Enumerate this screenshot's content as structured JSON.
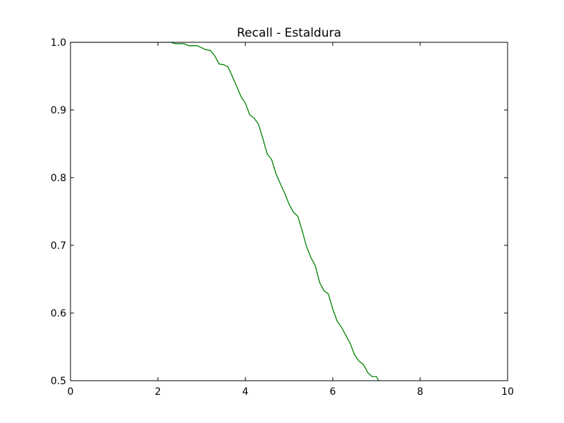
{
  "chart_data": {
    "type": "line",
    "title": "Recall - Estaldura",
    "xlabel": "",
    "ylabel": "",
    "xlim": [
      0,
      10
    ],
    "ylim": [
      0.5,
      1.0
    ],
    "x_ticks": [
      0,
      2,
      4,
      6,
      8,
      10
    ],
    "x_tick_labels": [
      "0",
      "2",
      "4",
      "6",
      "8",
      "10"
    ],
    "y_ticks": [
      0.5,
      0.6,
      0.7,
      0.8,
      0.9,
      1.0
    ],
    "y_tick_labels": [
      "0.5",
      "0.6",
      "0.7",
      "0.8",
      "0.9",
      "1.0"
    ],
    "grid": false,
    "legend": "none",
    "series": [
      {
        "color": "#008000",
        "x": [
          0.0,
          0.5,
          1.0,
          1.5,
          2.0,
          2.3,
          2.4,
          2.6,
          2.7,
          2.9,
          3.0,
          3.1,
          3.2,
          3.3,
          3.4,
          3.5,
          3.6,
          3.7,
          3.8,
          3.9,
          4.0,
          4.1,
          4.2,
          4.3,
          4.4,
          4.5,
          4.6,
          4.7,
          4.8,
          4.9,
          5.0,
          5.1,
          5.2,
          5.3,
          5.4,
          5.5,
          5.6,
          5.7,
          5.8,
          5.9,
          6.0,
          6.1,
          6.2,
          6.3,
          6.4,
          6.5,
          6.6,
          6.7,
          6.8,
          6.9,
          7.0,
          7.05,
          7.1
        ],
        "y": [
          1.0,
          1.0,
          1.0,
          1.0,
          1.0,
          1.0,
          0.998,
          0.998,
          0.995,
          0.995,
          0.992,
          0.989,
          0.988,
          0.98,
          0.968,
          0.967,
          0.964,
          0.95,
          0.935,
          0.92,
          0.91,
          0.893,
          0.888,
          0.879,
          0.858,
          0.835,
          0.827,
          0.806,
          0.791,
          0.777,
          0.761,
          0.749,
          0.743,
          0.722,
          0.698,
          0.682,
          0.67,
          0.645,
          0.633,
          0.628,
          0.606,
          0.588,
          0.579,
          0.567,
          0.555,
          0.538,
          0.529,
          0.524,
          0.512,
          0.506,
          0.506,
          0.5,
          0.5
        ]
      }
    ]
  }
}
